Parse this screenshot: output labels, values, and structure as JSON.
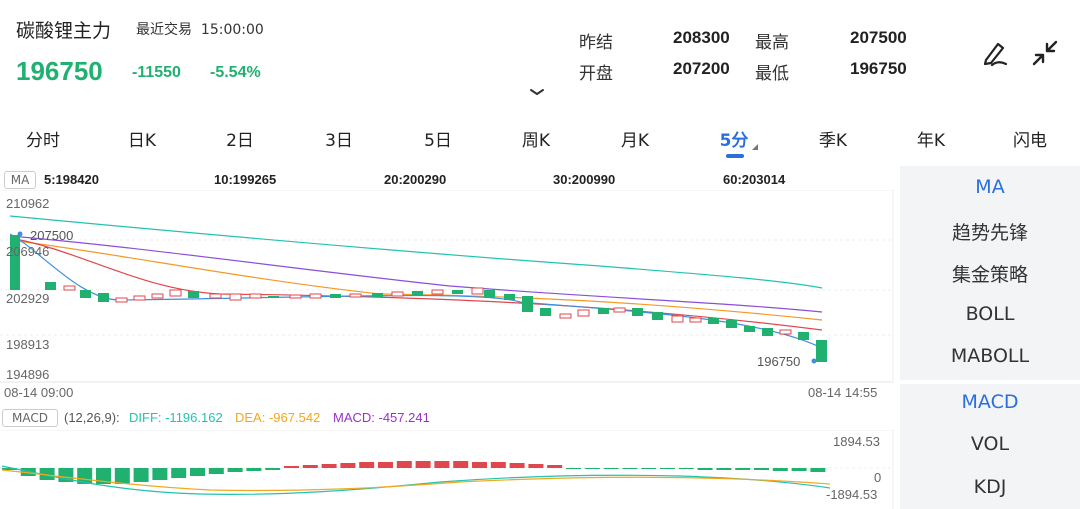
{
  "header": {
    "title": "碳酸锂主力",
    "trade_label": "最近交易",
    "trade_time": "15:00:00",
    "price": "196750",
    "change": "-11550",
    "change_pct": "-5.54%",
    "stats": {
      "prev_settle_label": "昨结",
      "prev_settle": "208300",
      "high_label": "最高",
      "high": "207500",
      "open_label": "开盘",
      "open": "207200",
      "low_label": "最低",
      "low": "196750"
    },
    "icons": [
      "draw-pen-icon",
      "collapse-arrows-icon",
      "chevron-down-icon"
    ]
  },
  "tabs": [
    "分时",
    "日K",
    "2日",
    "3日",
    "5日",
    "周K",
    "月K",
    "5分",
    "季K",
    "年K",
    "闪电"
  ],
  "active_tab": "5分",
  "ma_legend": {
    "badge": "MA",
    "items": [
      {
        "label": "5:198420",
        "color": "#3f8fe0"
      },
      {
        "label": "10:199265",
        "color": "#e0474c"
      },
      {
        "label": "20:200290",
        "color": "#f29a26"
      },
      {
        "label": "30:200990",
        "color": "#1d4fc4"
      },
      {
        "label": "60:203014",
        "color": "#22c3b0"
      }
    ]
  },
  "kline": {
    "y_labels": [
      "210962",
      "206946",
      "202929",
      "198913",
      "194896"
    ],
    "high_marker": "207500",
    "low_marker": "196750",
    "time_start": "08-14 09:00",
    "time_end": "08-14 14:55"
  },
  "macd": {
    "badge": "MACD",
    "params": "(12,26,9):",
    "diff": "DIFF: -1196.162",
    "dea": "DEA: -967.542",
    "macd": "MACD: -457.241",
    "y_top": "1894.53",
    "y_mid": "0",
    "y_bottom": "-1894.53",
    "colors": {
      "diff": "#22c3b0",
      "dea": "#f2a81e",
      "macd": "#9b30c9"
    }
  },
  "side_panel": {
    "main": [
      "MA",
      "趋势先锋",
      "集金策略",
      "BOLL",
      "MABOLL"
    ],
    "sub": [
      "MACD",
      "VOL",
      "KDJ"
    ],
    "active_main": "MA",
    "active_sub": "MACD"
  },
  "colors": {
    "up": "#e0474c",
    "down": "#20b070",
    "accent": "#2a6fdb"
  }
}
